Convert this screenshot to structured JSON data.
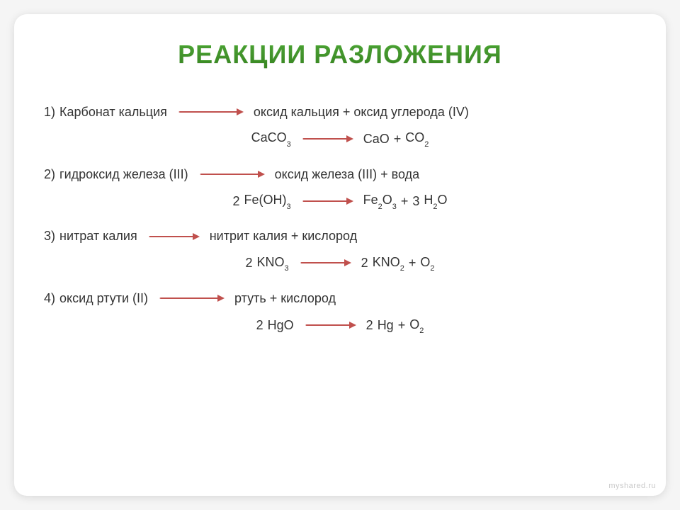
{
  "title": "РЕАКЦИИ РАЗЛОЖЕНИЯ",
  "footer": "myshared.ru",
  "colors": {
    "arrow": "#c0504d",
    "title_top": "#55b33c",
    "title_bottom": "#3c8f24",
    "text": "#333333",
    "background": "#ffffff"
  },
  "reactions": [
    {
      "num": "1)",
      "word_left": "Карбонат кальция",
      "word_right": "оксид кальция + оксид углерода (IV)",
      "chem": {
        "left_coef": "",
        "left": "CaCO",
        "left_sub": "3",
        "right1_coef": "",
        "right1": "CaO",
        "op1": "+",
        "right2_coef": "",
        "right2": "CO",
        "right2_sub": "2"
      }
    },
    {
      "num": "2)",
      "word_left": "гидроксид железа (III)",
      "word_right": "оксид железа (III)  + вода",
      "chem": {
        "left_coef": "2",
        "left": "Fe(OH)",
        "left_sub": "3",
        "right1_coef": "",
        "right1": "Fe",
        "right1_sub1": "2",
        "right1_b": "O",
        "right1_sub2": "3",
        "op1": "+",
        "right2_coef": "3",
        "right2": "H",
        "right2_sub1": "2",
        "right2_b": "O"
      }
    },
    {
      "num": "3)",
      "word_left": "нитрат калия",
      "word_right": "нитрит калия  +   кислород",
      "chem": {
        "left_coef": "2",
        "left": "KNO",
        "left_sub": "3",
        "right1_coef": "2",
        "right1": "KNO",
        "right1_sub": "2",
        "op1": "+",
        "right2_coef": "",
        "right2": "O",
        "right2_sub": "2"
      }
    },
    {
      "num": "4)",
      "word_left": "оксид ртути (II)",
      "word_right": "ртуть +  кислород",
      "chem": {
        "left_coef": "2",
        "left": "HgO",
        "right1_coef": "2",
        "right1": "Hg",
        "op1": "+",
        "right2_coef": "",
        "right2": "O",
        "right2_sub": "2"
      }
    }
  ]
}
